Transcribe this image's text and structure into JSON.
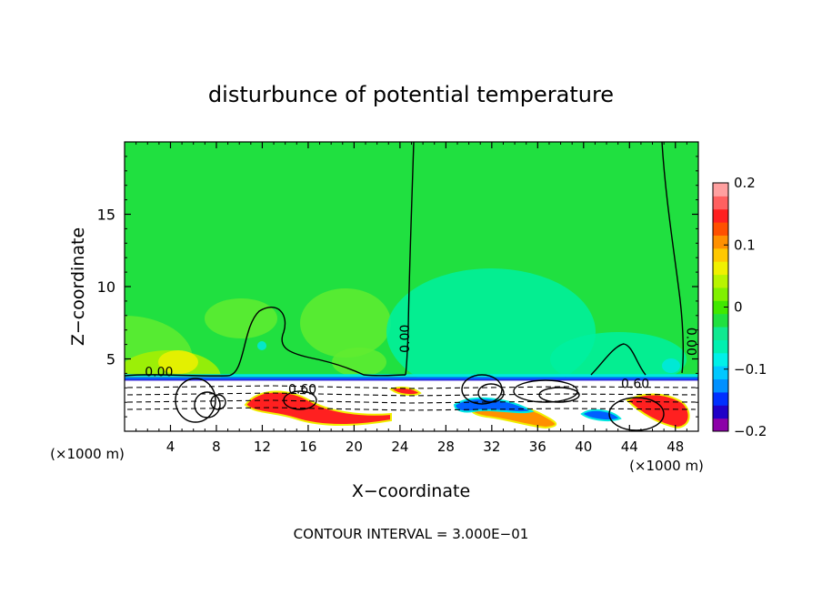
{
  "chart_data": {
    "type": "heatmap",
    "title": "disturbunce of potential temperature",
    "xlabel": "X−coordinate",
    "ylabel": "Z−coordinate",
    "x_unit_left": "(×1000 m)",
    "x_unit_right": "(×1000 m)",
    "xlim": [
      0,
      50
    ],
    "ylim": [
      0,
      20
    ],
    "x_ticks": [
      4,
      8,
      12,
      16,
      20,
      24,
      28,
      32,
      36,
      40,
      44,
      48
    ],
    "y_ticks": [
      5,
      10,
      15
    ],
    "footer": "CONTOUR INTERVAL = 3.000E−01",
    "contour_labels": [
      {
        "text": "0.00",
        "x": 3.0,
        "z": 3.8,
        "rotate": 0
      },
      {
        "text": "0.00",
        "x": 24.8,
        "z": 6.4,
        "rotate": -90
      },
      {
        "text": "0.00",
        "x": 49.0,
        "z": 6.2,
        "rotate": 90
      },
      {
        "text": "0.60",
        "x": 15.5,
        "z": 2.6,
        "rotate": 0
      },
      {
        "text": "0.60",
        "x": 44.5,
        "z": 3.0,
        "rotate": 0
      }
    ],
    "colorbar": {
      "min": -0.2,
      "max": 0.2,
      "tick_values": [
        0.2,
        0.1,
        0,
        -0.1,
        -0.2
      ],
      "tick_labels": [
        "0.2",
        "0.1",
        "0",
        "−0.1",
        "−0.2"
      ],
      "colors": [
        "#8c00a8",
        "#2000c8",
        "#0030ff",
        "#0090ff",
        "#00c8ff",
        "#00f0e8",
        "#00f0b0",
        "#10e890",
        "#20e040",
        "#40e800",
        "#80f000",
        "#b8f400",
        "#f0f000",
        "#ffc800",
        "#ff9000",
        "#ff5000",
        "#ff2020",
        "#ff6060",
        "#ffa0a0"
      ]
    },
    "field_colors": {
      "background": "#20e040",
      "light_green": "#60ec30",
      "yellow_green": "#a8f000",
      "cyan_green": "#00f0a0",
      "cyan": "#00e8e0",
      "blue": "#0060ff",
      "dark_blue": "#1000d0",
      "red": "#ff2020",
      "orange": "#ff9000",
      "yellow": "#f0f000",
      "terrain": "#ffffff"
    }
  }
}
